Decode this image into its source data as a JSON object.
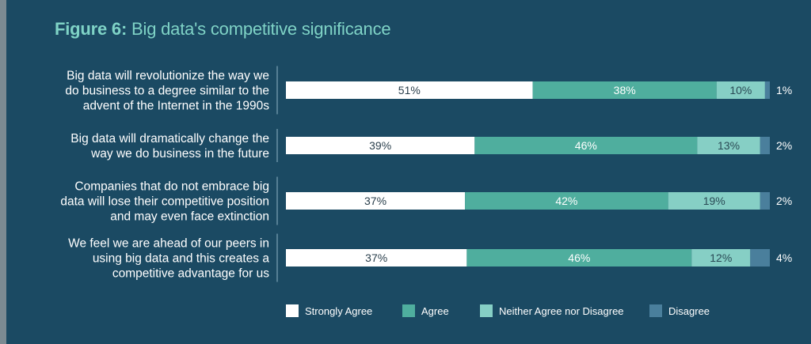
{
  "figure": {
    "label": "Figure 6:",
    "title": "Big data's competitive significance"
  },
  "colors": {
    "strongly_agree": "#ffffff",
    "agree": "#4fae9e",
    "neither": "#86cfc5",
    "disagree": "#4a7f9c",
    "background": "#1b4a63"
  },
  "chart_data": {
    "type": "bar",
    "orientation": "horizontal",
    "stacked": true,
    "unit": "%",
    "categories": [
      "Big data will revolutionize the way we do business to a degree similar to the advent of the Internet in the 1990s",
      "Big data will dramatically change the way we do business in the future",
      "Companies that do not embrace big data will lose their competitive position and may even face extinction",
      "We feel we are ahead of our peers in using big data and this creates a competitive advantage for us"
    ],
    "category_lines": [
      [
        "Big data will revolutionize the way we",
        "do business to a degree similar to the",
        "advent of the Internet in the 1990s"
      ],
      [
        "Big data will dramatically change the",
        "way we do business in the future"
      ],
      [
        "Companies that do not embrace big",
        "data will lose their competitive position",
        "and may even face extinction"
      ],
      [
        "We feel we are ahead of our peers in",
        "using big data and this creates a",
        "competitive advantage for us"
      ]
    ],
    "series": [
      {
        "name": "Strongly Agree",
        "values": [
          51,
          39,
          37,
          37
        ]
      },
      {
        "name": "Agree",
        "values": [
          38,
          46,
          42,
          46
        ]
      },
      {
        "name": "Neither Agree nor Disagree",
        "values": [
          10,
          13,
          19,
          12
        ]
      },
      {
        "name": "Disagree",
        "values": [
          1,
          2,
          2,
          4
        ]
      }
    ],
    "legend_position": "bottom",
    "grid": false
  }
}
